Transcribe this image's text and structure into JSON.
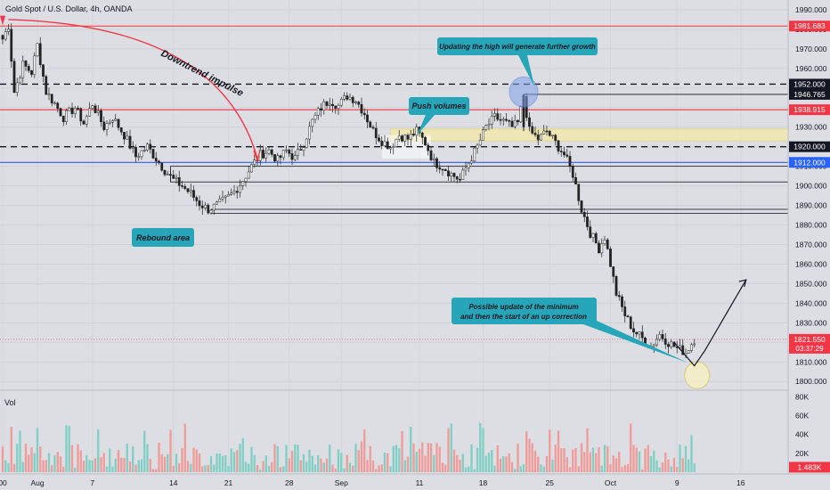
{
  "header": {
    "symbol_title": "Gold Spot / U.S. Dollar, 4h, OANDA"
  },
  "volume_panel": {
    "label": "Vol",
    "current_value_label": "1.483K"
  },
  "price_axis": {
    "ticks": [
      1990,
      1980,
      1970,
      1960,
      1950,
      1940,
      1930,
      1920,
      1910,
      1900,
      1890,
      1880,
      1870,
      1860,
      1850,
      1840,
      1830,
      1820,
      1810,
      1800
    ],
    "tick_labels": [
      "1990.000",
      "1980.000",
      "1970.000",
      "1960.000",
      "1950.000",
      "1940.000",
      "1930.000",
      "1920.000",
      "1910.000",
      "1900.000",
      "1890.000",
      "1880.000",
      "1870.000",
      "1860.000",
      "1850.000",
      "1840.000",
      "1830.000",
      "1820.000",
      "1810.000",
      "1800.000"
    ],
    "badges": [
      {
        "label": "1981.683",
        "value": 1981.683,
        "color": "#f23645"
      },
      {
        "label": "1952.000",
        "value": 1952.0,
        "color": "#131722"
      },
      {
        "label": "1946.765",
        "value": 1946.765,
        "color": "#131722"
      },
      {
        "label": "1938.915",
        "value": 1938.915,
        "color": "#f23645"
      },
      {
        "label": "1920.000",
        "value": 1920.0,
        "color": "#131722"
      },
      {
        "label": "1912.000",
        "value": 1912.0,
        "color": "#2962ff"
      }
    ],
    "current_price": {
      "label": "1821.550",
      "countdown": "03:37:29",
      "value": 1821.55,
      "color": "#f23645"
    }
  },
  "volume_axis": {
    "ticks": [
      80,
      60,
      40,
      20
    ],
    "tick_labels": [
      "80K",
      "60K",
      "40K",
      "20K"
    ]
  },
  "time_axis": {
    "labels": [
      {
        "label": "00",
        "bar": 0
      },
      {
        "label": "Aug",
        "bar": 12
      },
      {
        "label": "7",
        "bar": 31
      },
      {
        "label": "14",
        "bar": 59
      },
      {
        "label": "21",
        "bar": 78
      },
      {
        "label": "28",
        "bar": 99
      },
      {
        "label": "Sep",
        "bar": 117
      },
      {
        "label": "11",
        "bar": 144
      },
      {
        "label": "18",
        "bar": 166
      },
      {
        "label": "25",
        "bar": 189
      },
      {
        "label": "Oct",
        "bar": 210
      },
      {
        "label": "9",
        "bar": 233
      },
      {
        "label": "16",
        "bar": 255
      }
    ]
  },
  "horizontal_levels": [
    {
      "value": 1981.683,
      "style": "solid",
      "color": "#f23645"
    },
    {
      "value": 1952.0,
      "style": "dashed",
      "color": "#131722"
    },
    {
      "value": 1938.915,
      "style": "solid",
      "color": "#f23645"
    },
    {
      "value": 1920.0,
      "style": "dashed",
      "color": "#131722"
    },
    {
      "value": 1912.0,
      "style": "solid",
      "color": "#2962ff"
    }
  ],
  "annotations": {
    "downtrend": "Downtrend impulse",
    "rebound": "Rebound area",
    "push_volumes": "Push volumes",
    "high_update": "Updating the high will generate further growth",
    "min_update_line1": "Possible update of the minimum",
    "min_update_line2": "and then the start of an up correction"
  },
  "colors": {
    "up": "#26a69a",
    "down": "#ef5350",
    "candle_body": "#222222",
    "callout": "#26a6b8",
    "zone_yellow": "#f5e9a8",
    "circle_blue": "#7ea1e8",
    "circle_yellow": "#f8f1c2"
  },
  "chart_data": {
    "type": "candlestick",
    "title": "Gold Spot / U.S. Dollar, 4h, OANDA",
    "interval": "4h",
    "ylim": [
      1796,
      1995
    ],
    "anchors": [
      [
        0,
        1975
      ],
      [
        2,
        1982
      ],
      [
        4,
        1948
      ],
      [
        7,
        1962
      ],
      [
        10,
        1958
      ],
      [
        12,
        1972
      ],
      [
        15,
        1948
      ],
      [
        18,
        1942
      ],
      [
        21,
        1935
      ],
      [
        25,
        1940
      ],
      [
        28,
        1932
      ],
      [
        31,
        1942
      ],
      [
        35,
        1930
      ],
      [
        38,
        1935
      ],
      [
        42,
        1926
      ],
      [
        46,
        1915
      ],
      [
        50,
        1920
      ],
      [
        53,
        1914
      ],
      [
        56,
        1908
      ],
      [
        59,
        1903
      ],
      [
        62,
        1900
      ],
      [
        65,
        1896
      ],
      [
        68,
        1891
      ],
      [
        71,
        1888
      ],
      [
        74,
        1890
      ],
      [
        77,
        1893
      ],
      [
        80,
        1897
      ],
      [
        83,
        1903
      ],
      [
        86,
        1910
      ],
      [
        89,
        1916
      ],
      [
        92,
        1918
      ],
      [
        95,
        1913
      ],
      [
        98,
        1918
      ],
      [
        101,
        1914
      ],
      [
        104,
        1922
      ],
      [
        107,
        1933
      ],
      [
        110,
        1940
      ],
      [
        113,
        1944
      ],
      [
        116,
        1941
      ],
      [
        119,
        1946
      ],
      [
        122,
        1944
      ],
      [
        125,
        1937
      ],
      [
        128,
        1928
      ],
      [
        131,
        1923
      ],
      [
        134,
        1920
      ],
      [
        137,
        1926
      ],
      [
        140,
        1924
      ],
      [
        143,
        1928
      ],
      [
        146,
        1922
      ],
      [
        149,
        1912
      ],
      [
        152,
        1910
      ],
      [
        155,
        1906
      ],
      [
        158,
        1903
      ],
      [
        161,
        1912
      ],
      [
        164,
        1920
      ],
      [
        167,
        1930
      ],
      [
        170,
        1935
      ],
      [
        173,
        1933
      ],
      [
        176,
        1930
      ],
      [
        178,
        1932
      ],
      [
        180,
        1946
      ],
      [
        182,
        1928
      ],
      [
        185,
        1924
      ],
      [
        188,
        1928
      ],
      [
        191,
        1922
      ],
      [
        194,
        1916
      ],
      [
        197,
        1906
      ],
      [
        200,
        1888
      ],
      [
        203,
        1876
      ],
      [
        206,
        1868
      ],
      [
        208,
        1874
      ],
      [
        210,
        1860
      ],
      [
        212,
        1845
      ],
      [
        215,
        1834
      ],
      [
        218,
        1826
      ],
      [
        221,
        1822
      ],
      [
        224,
        1818
      ],
      [
        227,
        1824
      ],
      [
        230,
        1820
      ],
      [
        233,
        1817
      ],
      [
        236,
        1815
      ],
      [
        239,
        1821.55
      ]
    ],
    "volume_ylim": [
      0,
      85
    ],
    "volume_range_thousands": [
      3,
      50
    ]
  }
}
